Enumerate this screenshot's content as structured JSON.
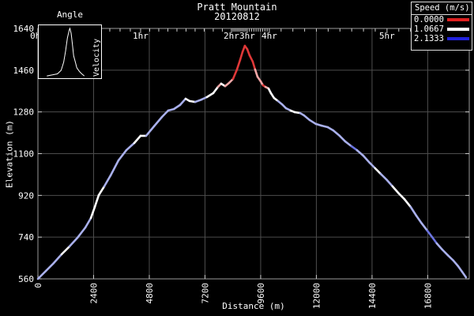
{
  "title": {
    "line1": "Pratt Mountain",
    "line2": "20120812"
  },
  "colors": {
    "background": "#000000",
    "text": "#ffffff",
    "grid": "#4d4d4d",
    "frame": "#9a9a9a",
    "tick": "#cccccc"
  },
  "legend": {
    "title": "Speed (m/s)",
    "entries": [
      {
        "label": "0.0000",
        "color": "#e02020"
      },
      {
        "label": "1.0667",
        "color": "#ffffff"
      },
      {
        "label": "2.1333",
        "color": "#2222dd"
      }
    ]
  },
  "inset": {
    "title": "Angle",
    "ylabel": "Velocity",
    "curve": [
      [
        0.13,
        0.97
      ],
      [
        0.22,
        0.95
      ],
      [
        0.3,
        0.93
      ],
      [
        0.36,
        0.86
      ],
      [
        0.4,
        0.7
      ],
      [
        0.43,
        0.48
      ],
      [
        0.46,
        0.22
      ],
      [
        0.49,
        0.06
      ],
      [
        0.5,
        0.03
      ],
      [
        0.52,
        0.13
      ],
      [
        0.54,
        0.35
      ],
      [
        0.56,
        0.57
      ],
      [
        0.59,
        0.71
      ],
      [
        0.61,
        0.81
      ],
      [
        0.65,
        0.88
      ],
      [
        0.69,
        0.93
      ],
      [
        0.73,
        0.97
      ]
    ]
  },
  "axes": {
    "ylabel": "Elevation (m)",
    "xlabel": "Distance (m)",
    "yticks": [
      560,
      740,
      920,
      1100,
      1280,
      1460,
      1640
    ],
    "xticks": [
      0,
      2400,
      4800,
      7200,
      9600,
      12000,
      14400,
      16800
    ],
    "top_time_ticks": [
      {
        "label": "0hr",
        "x_m": 0
      },
      {
        "label": "1hr",
        "x_m": 4425
      },
      {
        "label": "2hr",
        "x_m": 8340
      },
      {
        "label": "3hr",
        "x_m": 9020
      },
      {
        "label": "4hr",
        "x_m": 9973
      },
      {
        "label": "5hr",
        "x_m": 15045
      }
    ]
  },
  "chart_data": {
    "type": "line",
    "title": "Pratt Mountain 20120812",
    "xlabel": "Distance (m)",
    "ylabel": "Elevation (m)",
    "xlim": [
      0,
      18590
    ],
    "ylim": [
      560,
      1640
    ],
    "grid": true,
    "legend_position": "top-right",
    "speed_color_scale": {
      "0.0000": "red",
      "1.0667": "white",
      "2.1333": "blue"
    },
    "color_classes": {
      "R": "#e03838",
      "K": "#f2a6a6",
      "W": "#ffffff",
      "P": "#a9b0ec",
      "B": "#6b74e0"
    },
    "points": [
      [
        0,
        560,
        "P"
      ],
      [
        340,
        594,
        "P"
      ],
      [
        681,
        628,
        "P"
      ],
      [
        1021,
        666,
        "P"
      ],
      [
        1362,
        700,
        "W"
      ],
      [
        1702,
        737,
        "P"
      ],
      [
        2042,
        781,
        "P"
      ],
      [
        2281,
        822,
        "P"
      ],
      [
        2451,
        870,
        "W"
      ],
      [
        2621,
        921,
        "W"
      ],
      [
        2859,
        959,
        "W"
      ],
      [
        3132,
        1006,
        "P"
      ],
      [
        3472,
        1071,
        "P"
      ],
      [
        3812,
        1115,
        "P"
      ],
      [
        4153,
        1146,
        "P"
      ],
      [
        4425,
        1177,
        "W"
      ],
      [
        4663,
        1177,
        "W"
      ],
      [
        5004,
        1218,
        "P"
      ],
      [
        5344,
        1258,
        "P"
      ],
      [
        5616,
        1286,
        "P"
      ],
      [
        5855,
        1292,
        "P"
      ],
      [
        6127,
        1310,
        "P"
      ],
      [
        6365,
        1337,
        "P"
      ],
      [
        6536,
        1327,
        "W"
      ],
      [
        6774,
        1323,
        "W"
      ],
      [
        7046,
        1333,
        "P"
      ],
      [
        7284,
        1344,
        "P"
      ],
      [
        7557,
        1361,
        "W"
      ],
      [
        7761,
        1388,
        "W"
      ],
      [
        7897,
        1402,
        "K"
      ],
      [
        8067,
        1391,
        "W"
      ],
      [
        8237,
        1405,
        "K"
      ],
      [
        8408,
        1422,
        "K"
      ],
      [
        8578,
        1463,
        "R"
      ],
      [
        8714,
        1504,
        "R"
      ],
      [
        8816,
        1538,
        "R"
      ],
      [
        8918,
        1565,
        "R"
      ],
      [
        9020,
        1551,
        "R"
      ],
      [
        9122,
        1524,
        "R"
      ],
      [
        9258,
        1497,
        "R"
      ],
      [
        9361,
        1463,
        "R"
      ],
      [
        9463,
        1432,
        "K"
      ],
      [
        9599,
        1412,
        "K"
      ],
      [
        9701,
        1395,
        "K"
      ],
      [
        9803,
        1388,
        "R"
      ],
      [
        9939,
        1381,
        "K"
      ],
      [
        10041,
        1361,
        "W"
      ],
      [
        10177,
        1340,
        "W"
      ],
      [
        10347,
        1327,
        "W"
      ],
      [
        10518,
        1313,
        "P"
      ],
      [
        10688,
        1296,
        "P"
      ],
      [
        10892,
        1286,
        "P"
      ],
      [
        11062,
        1279,
        "W"
      ],
      [
        11301,
        1275,
        "W"
      ],
      [
        11471,
        1265,
        "P"
      ],
      [
        11709,
        1245,
        "P"
      ],
      [
        11981,
        1228,
        "P"
      ],
      [
        12220,
        1221,
        "P"
      ],
      [
        12492,
        1214,
        "P"
      ],
      [
        12730,
        1200,
        "P"
      ],
      [
        13003,
        1177,
        "P"
      ],
      [
        13241,
        1153,
        "P"
      ],
      [
        13513,
        1132,
        "P"
      ],
      [
        13751,
        1115,
        "B"
      ],
      [
        14024,
        1091,
        "P"
      ],
      [
        14296,
        1061,
        "P"
      ],
      [
        14534,
        1037,
        "P"
      ],
      [
        14773,
        1013,
        "W"
      ],
      [
        15045,
        986,
        "P"
      ],
      [
        15283,
        959,
        "P"
      ],
      [
        15556,
        928,
        "W"
      ],
      [
        15794,
        904,
        "W"
      ],
      [
        16066,
        870,
        "W"
      ],
      [
        16305,
        833,
        "P"
      ],
      [
        16543,
        799,
        "P"
      ],
      [
        16781,
        768,
        "P"
      ],
      [
        16985,
        741,
        "B"
      ],
      [
        17190,
        713,
        "B"
      ],
      [
        17428,
        686,
        "P"
      ],
      [
        17666,
        662,
        "P"
      ],
      [
        17904,
        639,
        "P"
      ],
      [
        18109,
        615,
        "P"
      ],
      [
        18279,
        591,
        "P"
      ],
      [
        18449,
        567,
        "P"
      ]
    ],
    "inset_angle_velocity": {
      "type": "line",
      "title": "Angle",
      "ylabel": "Velocity",
      "normalized_curve": "see inset.curve"
    }
  }
}
